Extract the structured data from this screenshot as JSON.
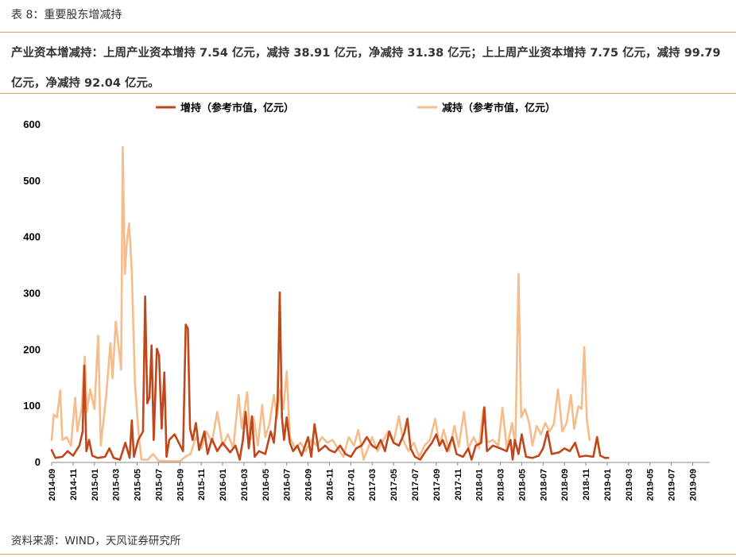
{
  "figure": {
    "title": "表 8：重要股东增减持",
    "summary": "产业资本增减持：上周产业资本增持 7.54 亿元，减持 38.91 亿元，净减持 31.38 亿元；上上周产业资本增持 7.75 亿元，减持 99.79 亿元，净减持 92.04 亿元。",
    "source": "资料来源：WIND，天风证券研究所"
  },
  "colors": {
    "increase": "#c0461b",
    "decrease": "#f6bd8c",
    "rule": "#d9a071"
  },
  "chart_data": {
    "type": "line",
    "title": "",
    "xlabel": "",
    "ylabel": "",
    "ylim": [
      0,
      600
    ],
    "yticks": [
      "0",
      "100",
      "200",
      "300",
      "400",
      "500",
      "600"
    ],
    "grid": false,
    "legend_position": "top",
    "categories": [
      "2014-09",
      "2014-11",
      "2015-01",
      "2015-03",
      "2015-05",
      "2015-07",
      "2015-09",
      "2015-11",
      "2016-01",
      "2016-03",
      "2016-05",
      "2016-07",
      "2016-09",
      "2016-11",
      "2017-01",
      "2017-03",
      "2017-05",
      "2017-07",
      "2017-09",
      "2017-11",
      "2018-01",
      "2018-03",
      "2018-05",
      "2018-07",
      "2018-09",
      "2018-11",
      "2019-01",
      "2019-03",
      "2019-05",
      "2019-07",
      "2019-09"
    ],
    "series": [
      {
        "name": "增持（参考市值，亿元）",
        "color": "#c0461b",
        "anchors": [
          [
            0,
            22
          ],
          [
            0.35,
            8
          ],
          [
            1,
            10
          ],
          [
            1.5,
            20
          ],
          [
            2,
            12
          ],
          [
            2.6,
            30
          ],
          [
            2.9,
            55
          ],
          [
            3.05,
            172
          ],
          [
            3.25,
            20
          ],
          [
            3.5,
            40
          ],
          [
            3.8,
            12
          ],
          [
            4.3,
            8
          ],
          [
            5,
            10
          ],
          [
            5.4,
            25
          ],
          [
            5.8,
            8
          ],
          [
            6.4,
            5
          ],
          [
            6.9,
            35
          ],
          [
            7.3,
            8
          ],
          [
            7.5,
            75
          ],
          [
            7.7,
            10
          ],
          [
            8.1,
            40
          ],
          [
            8.55,
            55
          ],
          [
            8.75,
            295
          ],
          [
            8.95,
            105
          ],
          [
            9.15,
            115
          ],
          [
            9.35,
            208
          ],
          [
            9.55,
            40
          ],
          [
            9.85,
            202
          ],
          [
            10.05,
            190
          ],
          [
            10.3,
            60
          ],
          [
            10.55,
            160
          ],
          [
            10.75,
            10
          ],
          [
            11,
            40
          ],
          [
            11.5,
            50
          ],
          [
            12.3,
            20
          ],
          [
            12.55,
            245
          ],
          [
            12.75,
            238
          ],
          [
            12.95,
            60
          ],
          [
            13.2,
            40
          ],
          [
            13.5,
            70
          ],
          [
            13.8,
            22
          ],
          [
            14.3,
            55
          ],
          [
            14.6,
            15
          ],
          [
            15,
            42
          ],
          [
            15.5,
            20
          ],
          [
            16,
            35
          ],
          [
            16.7,
            18
          ],
          [
            17.2,
            30
          ],
          [
            17.6,
            5
          ],
          [
            17.9,
            40
          ],
          [
            18.15,
            90
          ],
          [
            18.45,
            25
          ],
          [
            18.75,
            82
          ],
          [
            19,
            10
          ],
          [
            19.4,
            20
          ],
          [
            20,
            15
          ],
          [
            20.5,
            55
          ],
          [
            20.8,
            35
          ],
          [
            21.15,
            110
          ],
          [
            21.35,
            302
          ],
          [
            21.55,
            80
          ],
          [
            21.75,
            40
          ],
          [
            22,
            80
          ],
          [
            22.3,
            35
          ],
          [
            22.6,
            20
          ],
          [
            23,
            30
          ],
          [
            23.4,
            12
          ],
          [
            24,
            45
          ],
          [
            24.3,
            10
          ],
          [
            24.6,
            68
          ],
          [
            25,
            20
          ],
          [
            25.6,
            30
          ],
          [
            26,
            22
          ],
          [
            26.5,
            18
          ],
          [
            27,
            30
          ],
          [
            27.5,
            15
          ],
          [
            28,
            10
          ],
          [
            28.5,
            25
          ],
          [
            29,
            30
          ],
          [
            29.5,
            45
          ],
          [
            30,
            30
          ],
          [
            30.4,
            25
          ],
          [
            30.8,
            40
          ],
          [
            31.2,
            20
          ],
          [
            31.6,
            55
          ],
          [
            32,
            35
          ],
          [
            32.5,
            30
          ],
          [
            33,
            52
          ],
          [
            33.3,
            78
          ],
          [
            33.6,
            25
          ],
          [
            34,
            10
          ],
          [
            34.5,
            5
          ],
          [
            35,
            20
          ],
          [
            35.6,
            35
          ],
          [
            36,
            50
          ],
          [
            36.3,
            30
          ],
          [
            36.6,
            40
          ],
          [
            37,
            20
          ],
          [
            37.5,
            45
          ],
          [
            37.9,
            15
          ],
          [
            38.5,
            10
          ],
          [
            39,
            25
          ],
          [
            39.3,
            5
          ],
          [
            39.7,
            30
          ],
          [
            40.2,
            35
          ],
          [
            40.5,
            98
          ],
          [
            40.75,
            20
          ],
          [
            41.3,
            30
          ],
          [
            42,
            25
          ],
          [
            42.6,
            20
          ],
          [
            42.95,
            40
          ],
          [
            43.15,
            5
          ],
          [
            43.35,
            40
          ],
          [
            43.7,
            15
          ],
          [
            44,
            50
          ],
          [
            44.4,
            10
          ],
          [
            45,
            8
          ],
          [
            45.6,
            12
          ],
          [
            46,
            25
          ],
          [
            46.4,
            55
          ],
          [
            46.8,
            15
          ],
          [
            47.5,
            18
          ],
          [
            48,
            25
          ],
          [
            48.5,
            20
          ],
          [
            49,
            35
          ],
          [
            49.4,
            10
          ],
          [
            50,
            12
          ],
          [
            50.7,
            10
          ],
          [
            51.05,
            45
          ],
          [
            51.35,
            12
          ],
          [
            51.8,
            8
          ],
          [
            52.1,
            8
          ]
        ]
      },
      {
        "name": "减持（参考市值，亿元）",
        "color": "#f6bd8c",
        "anchors": [
          [
            0,
            40
          ],
          [
            0.2,
            85
          ],
          [
            0.5,
            80
          ],
          [
            0.8,
            128
          ],
          [
            1.0,
            40
          ],
          [
            1.4,
            45
          ],
          [
            1.8,
            30
          ],
          [
            2.2,
            115
          ],
          [
            2.4,
            55
          ],
          [
            2.8,
            95
          ],
          [
            3.1,
            188
          ],
          [
            3.3,
            90
          ],
          [
            3.6,
            130
          ],
          [
            4.0,
            95
          ],
          [
            4.35,
            225
          ],
          [
            4.6,
            30
          ],
          [
            5.1,
            118
          ],
          [
            5.5,
            212
          ],
          [
            5.7,
            150
          ],
          [
            6.0,
            250
          ],
          [
            6.3,
            200
          ],
          [
            6.5,
            165
          ],
          [
            6.65,
            560
          ],
          [
            6.85,
            335
          ],
          [
            7.05,
            395
          ],
          [
            7.25,
            425
          ],
          [
            7.5,
            340
          ],
          [
            7.8,
            140
          ],
          [
            8.1,
            60
          ],
          [
            8.4,
            5
          ],
          [
            9.0,
            5
          ],
          [
            9.5,
            15
          ],
          [
            10.0,
            3
          ],
          [
            11.0,
            2
          ],
          [
            12.0,
            2
          ],
          [
            12.5,
            10
          ],
          [
            13.0,
            15
          ],
          [
            13.5,
            45
          ],
          [
            14.0,
            25
          ],
          [
            14.5,
            55
          ],
          [
            15.0,
            35
          ],
          [
            15.5,
            90
          ],
          [
            16.0,
            30
          ],
          [
            16.5,
            50
          ],
          [
            17.0,
            25
          ],
          [
            17.5,
            120
          ],
          [
            17.8,
            60
          ],
          [
            18.3,
            125
          ],
          [
            18.6,
            40
          ],
          [
            18.9,
            80
          ],
          [
            19.3,
            30
          ],
          [
            19.7,
            102
          ],
          [
            20.0,
            45
          ],
          [
            20.4,
            70
          ],
          [
            20.8,
            120
          ],
          [
            21.1,
            80
          ],
          [
            21.4,
            130
          ],
          [
            21.7,
            95
          ],
          [
            22.0,
            162
          ],
          [
            22.3,
            45
          ],
          [
            22.8,
            25
          ],
          [
            23.3,
            35
          ],
          [
            23.8,
            20
          ],
          [
            24.3,
            40
          ],
          [
            24.8,
            30
          ],
          [
            25.3,
            45
          ],
          [
            25.8,
            35
          ],
          [
            26.3,
            40
          ],
          [
            26.8,
            25
          ],
          [
            27.3,
            10
          ],
          [
            27.8,
            45
          ],
          [
            28.3,
            30
          ],
          [
            28.7,
            58
          ],
          [
            29.2,
            5
          ],
          [
            29.6,
            25
          ],
          [
            30.0,
            45
          ],
          [
            30.5,
            20
          ],
          [
            31.0,
            38
          ],
          [
            31.5,
            55
          ],
          [
            32.0,
            35
          ],
          [
            32.5,
            82
          ],
          [
            32.9,
            40
          ],
          [
            33.4,
            20
          ],
          [
            33.9,
            35
          ],
          [
            34.4,
            10
          ],
          [
            34.9,
            30
          ],
          [
            35.4,
            40
          ],
          [
            35.9,
            78
          ],
          [
            36.3,
            30
          ],
          [
            36.7,
            58
          ],
          [
            37.2,
            20
          ],
          [
            37.7,
            65
          ],
          [
            38.1,
            28
          ],
          [
            38.6,
            90
          ],
          [
            39.0,
            25
          ],
          [
            39.5,
            45
          ],
          [
            40.0,
            25
          ],
          [
            40.4,
            95
          ],
          [
            40.8,
            35
          ],
          [
            41.3,
            40
          ],
          [
            41.8,
            30
          ],
          [
            42.2,
            97
          ],
          [
            42.6,
            25
          ],
          [
            43.1,
            70
          ],
          [
            43.4,
            30
          ],
          [
            43.7,
            335
          ],
          [
            43.95,
            80
          ],
          [
            44.3,
            95
          ],
          [
            44.7,
            70
          ],
          [
            45.0,
            30
          ],
          [
            45.4,
            65
          ],
          [
            45.8,
            50
          ],
          [
            46.2,
            70
          ],
          [
            46.6,
            55
          ],
          [
            47.0,
            68
          ],
          [
            47.4,
            130
          ],
          [
            47.8,
            55
          ],
          [
            48.2,
            70
          ],
          [
            48.6,
            120
          ],
          [
            48.9,
            60
          ],
          [
            49.3,
            100
          ],
          [
            49.6,
            95
          ],
          [
            49.85,
            205
          ],
          [
            50.1,
            75
          ],
          [
            50.35,
            40
          ]
        ]
      }
    ]
  }
}
